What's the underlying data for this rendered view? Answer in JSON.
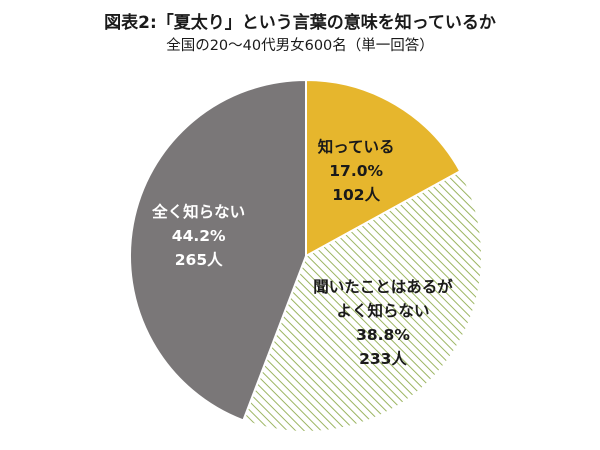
{
  "header": {
    "title": "図表2:「夏太り」という言葉の意味を知っているか",
    "subtitle": "全国の20～40代男女600名（単一回答）"
  },
  "chart_data": {
    "type": "pie",
    "title": "図表2:「夏太り」という言葉の意味を知っているか",
    "subtitle": "全国の20～40代男女600名（単一回答）",
    "start_angle_deg": 0,
    "direction": "clockwise",
    "slices": [
      {
        "label": [
          "知っている"
        ],
        "percent": 17.0,
        "percent_text": "17.0%",
        "count_text": "102人",
        "fill": "#e6b62d",
        "pattern": "solid",
        "text_color": "#1a1a1a"
      },
      {
        "label": [
          "聞いたことはあるが",
          "よく知らない"
        ],
        "percent": 38.8,
        "percent_text": "38.8%",
        "count_text": "233人",
        "fill": "#ffffff",
        "pattern": "diagonal-hatch",
        "hatch_color": "#9cb562",
        "text_color": "#1a1a1a"
      },
      {
        "label": [
          "全く知らない"
        ],
        "percent": 44.2,
        "percent_text": "44.2%",
        "count_text": "265人",
        "fill": "#7a7778",
        "pattern": "solid",
        "text_color": "#ffffff"
      }
    ]
  }
}
